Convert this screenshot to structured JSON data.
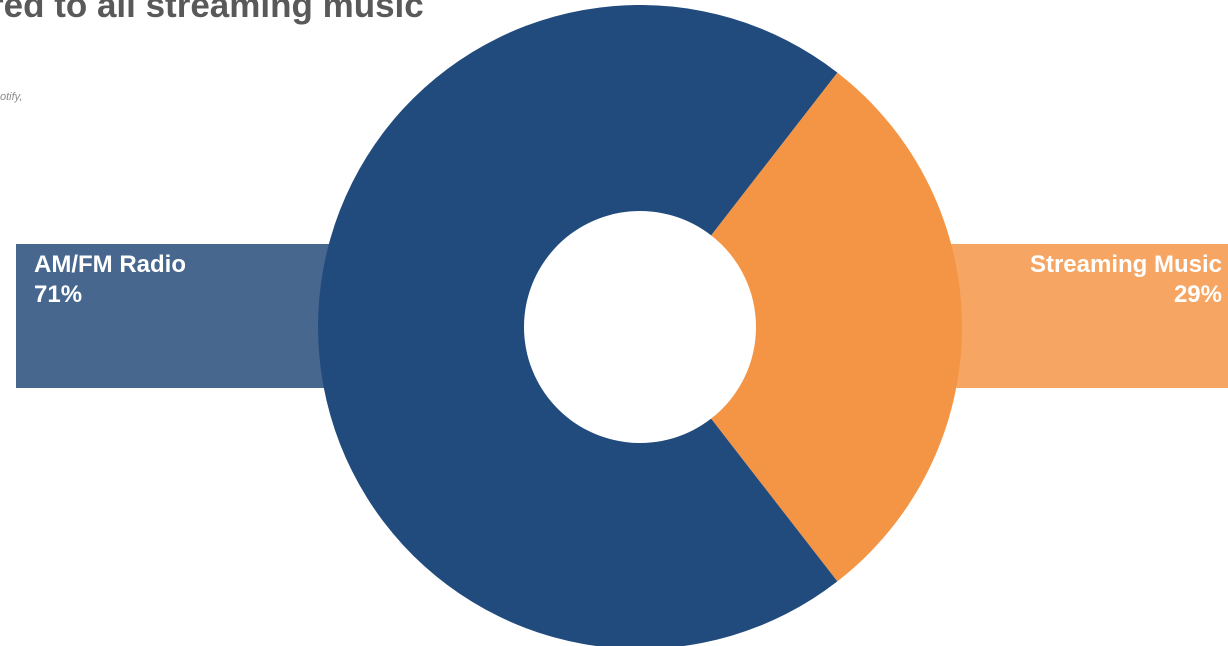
{
  "header": {
    "title": "red to all streaming music",
    "subtitle": "otify,"
  },
  "chart_data": {
    "type": "pie",
    "donut": true,
    "slices": [
      {
        "label": "AM/FM Radio",
        "value": 71,
        "value_label": "71%",
        "color": "#214b7d",
        "callout_color": "#47678f"
      },
      {
        "label": "Streaming Music",
        "value": 29,
        "value_label": "29%",
        "color": "#f49545",
        "callout_color": "#f6a662"
      }
    ]
  }
}
